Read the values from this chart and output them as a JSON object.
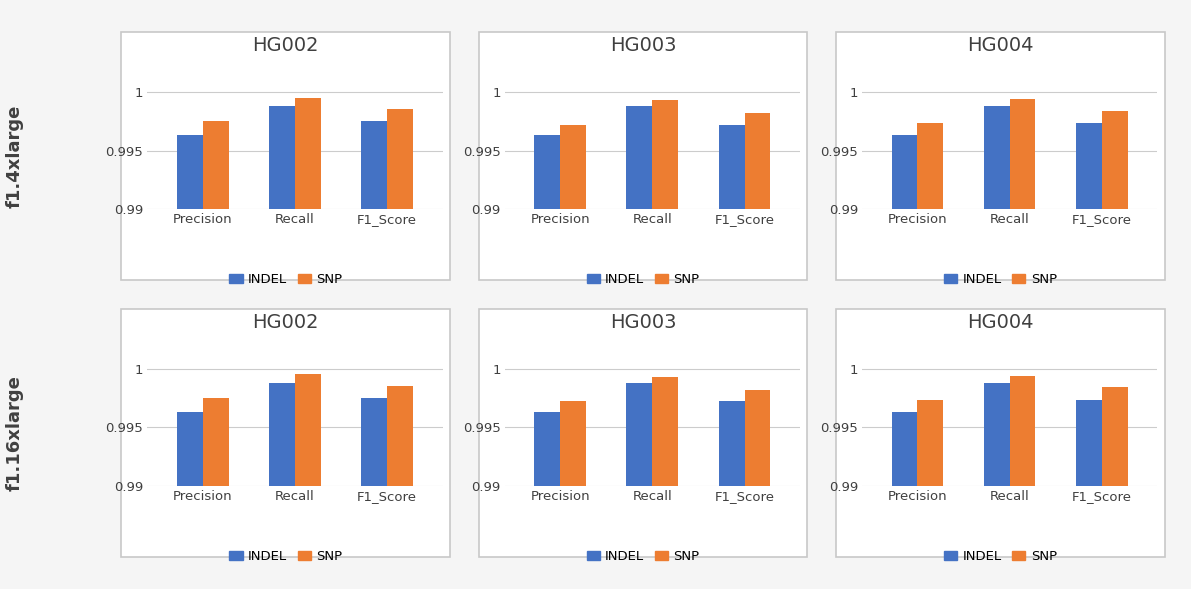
{
  "rows": [
    "f1.4xlarge",
    "f1.16xlarge"
  ],
  "samples": [
    "HG002",
    "HG003",
    "HG004"
  ],
  "metrics": [
    "Precision",
    "Recall",
    "F1_Score"
  ],
  "indel_color": "#4472C4",
  "snp_color": "#ED7D31",
  "ylim": [
    0.99,
    1.0025
  ],
  "yticks": [
    0.99,
    0.995,
    1.0
  ],
  "ytick_labels": [
    "0.99",
    "0.995",
    "1"
  ],
  "data": {
    "f1.4xlarge": {
      "HG002": {
        "INDEL": [
          0.9963,
          0.9988,
          0.9975
        ],
        "SNP": [
          0.9975,
          0.9995,
          0.9985
        ]
      },
      "HG003": {
        "INDEL": [
          0.9963,
          0.9988,
          0.9972
        ],
        "SNP": [
          0.9972,
          0.9993,
          0.9982
        ]
      },
      "HG004": {
        "INDEL": [
          0.9963,
          0.9988,
          0.9973
        ],
        "SNP": [
          0.9973,
          0.9994,
          0.9984
        ]
      }
    },
    "f1.16xlarge": {
      "HG002": {
        "INDEL": [
          0.9963,
          0.9988,
          0.9975
        ],
        "SNP": [
          0.9975,
          0.9995,
          0.9985
        ]
      },
      "HG003": {
        "INDEL": [
          0.9963,
          0.9988,
          0.9972
        ],
        "SNP": [
          0.9972,
          0.9993,
          0.9982
        ]
      },
      "HG004": {
        "INDEL": [
          0.9963,
          0.9988,
          0.9973
        ],
        "SNP": [
          0.9973,
          0.9994,
          0.9984
        ]
      }
    }
  },
  "title_fontsize": 14,
  "tick_fontsize": 9.5,
  "xlabel_fontsize": 9.5,
  "row_label_fontsize": 13,
  "legend_fontsize": 9.5,
  "bar_width": 0.28,
  "figure_bg": "#f5f5f5",
  "panel_bg": "#ffffff",
  "border_color": "#c8c8c8",
  "grid_color": "#cccccc",
  "text_color": "#404040"
}
